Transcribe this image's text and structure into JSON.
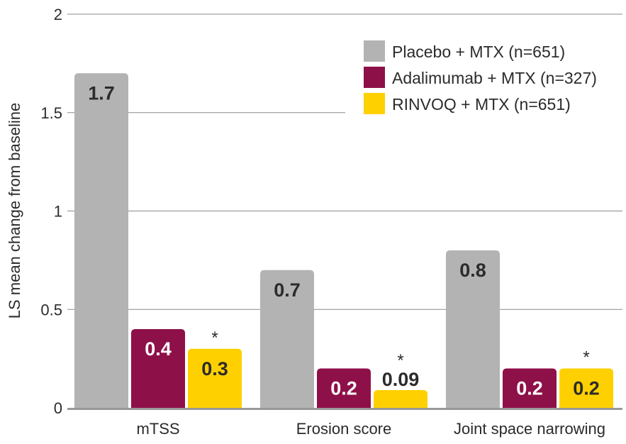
{
  "chart_data": {
    "type": "bar",
    "title": "",
    "xlabel": "",
    "ylabel": "LS mean change from baseline",
    "ylim": [
      0,
      2
    ],
    "yticks": [
      0,
      0.5,
      1,
      1.5,
      2
    ],
    "ytick_labels": [
      "0",
      "0.5",
      "1",
      "1.5",
      "2"
    ],
    "grid": true,
    "legend_position": "top-right",
    "categories": [
      "mTSS",
      "Erosion score",
      "Joint space narrowing"
    ],
    "series": [
      {
        "name": "Placebo + MTX (n=651)",
        "color": "#b3b3b3",
        "label_color": "#2b2b2b",
        "values": [
          1.7,
          0.7,
          0.8
        ],
        "labels": [
          "1.7",
          "0.7",
          "0.8"
        ],
        "marks": [
          "",
          "",
          ""
        ]
      },
      {
        "name": "Adalimumab + MTX (n=327)",
        "color": "#8e1049",
        "label_color": "#ffffff",
        "values": [
          0.4,
          0.2,
          0.2
        ],
        "labels": [
          "0.4",
          "0.2",
          "0.2"
        ],
        "marks": [
          "",
          "",
          ""
        ]
      },
      {
        "name": "RINVOQ + MTX (n=651)",
        "color": "#ffd000",
        "label_color": "#2b2b2b",
        "values": [
          0.3,
          0.09,
          0.2
        ],
        "labels": [
          "0.3",
          "0.09",
          "0.2"
        ],
        "marks": [
          "*",
          "*",
          "*"
        ]
      }
    ]
  }
}
